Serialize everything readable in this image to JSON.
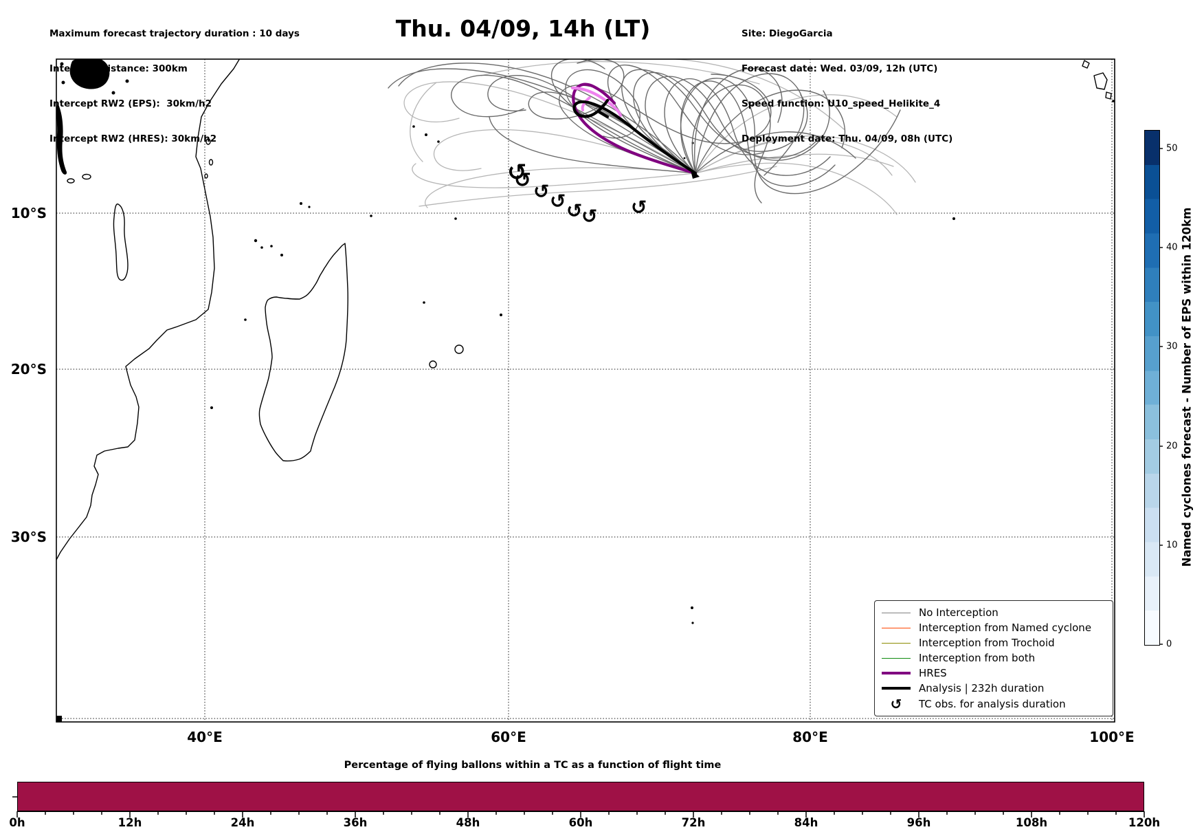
{
  "figure": {
    "title": "Thu. 04/09, 14h (LT)"
  },
  "info_left": {
    "lines": [
      "Maximum forecast trajectory duration : 10 days",
      "Intercept distance: 300km",
      "Intercept RW2 (EPS):  30km/h2",
      "Intercept RW2 (HRES): 30km/h2"
    ]
  },
  "info_right": {
    "lines": [
      "Site: DiegoGarcia",
      "Forecast date: Wed. 03/09, 12h (UTC)",
      "Speed function: U10_speed_Helikite_4",
      "Deployment date: Thu. 04/09, 08h (UTC)"
    ]
  },
  "map": {
    "lon_labels": [
      "40°E",
      "60°E",
      "80°E",
      "100°E"
    ],
    "lat_labels": [
      "10°S",
      "20°S",
      "30°S"
    ],
    "tc_symbol": "↺"
  },
  "legend": {
    "items": [
      {
        "label": "No Interception",
        "color": "#808080",
        "style": "thin"
      },
      {
        "label": "Interception from Named cyclone",
        "color": "#ff4500",
        "style": "thin"
      },
      {
        "label": "Interception from Trochoid",
        "color": "#8b8b00",
        "style": "thin"
      },
      {
        "label": "Interception from both",
        "color": "#0e8a0e",
        "style": "thin"
      },
      {
        "label": "HRES",
        "color": "#800080",
        "style": "thick"
      },
      {
        "label": "Analysis | 232h duration",
        "color": "#000000",
        "style": "thick"
      },
      {
        "label": "TC obs. for analysis duration",
        "symbol": "↺",
        "color": "#000000",
        "style": "symbol"
      }
    ]
  },
  "colorbar": {
    "label": "Named cyclones forecast - Number of EPS within 120km",
    "ticks": [
      "0",
      "10",
      "20",
      "30",
      "40",
      "50"
    ],
    "colormap": "Blues",
    "range": [
      0,
      52
    ]
  },
  "bottom_chart": {
    "title": "Percentage of flying ballons within a TC as a function of flight time",
    "x_labels": [
      "0h",
      "12h",
      "24h",
      "36h",
      "48h",
      "60h",
      "72h",
      "84h",
      "96h",
      "108h",
      "120h"
    ],
    "bar_color": "#9f1146"
  },
  "chart_data": [
    {
      "type": "map-trajectory-ensemble",
      "title": "Thu. 04/09, 14h (LT)",
      "region": "South-West Indian Ocean (Africa / Madagascar to 100°E)",
      "x_axis": {
        "ticks": [
          "40°E",
          "60°E",
          "80°E",
          "100°E"
        ]
      },
      "y_axis": {
        "ticks": [
          "10°S",
          "20°S",
          "30°S"
        ]
      },
      "projection_extent": {
        "lon_e": [
          30.2,
          100.2
        ],
        "lat": [
          -41,
          0.5
        ]
      },
      "deployment_site": {
        "name": "DiegoGarcia",
        "lon_e": 72.5,
        "lat": -7.3
      },
      "ensemble": {
        "description": "~50 EPS balloon trajectory members fanning NW from Diego Garcia with cyclonic loops near 62-72E / 2-8S",
        "classes": [
          "No Interception",
          "Interception from Named cyclone",
          "Interception from Trochoid",
          "Interception from both"
        ],
        "visible_classes": [
          "No Interception"
        ]
      },
      "highlight_tracks": [
        "HRES",
        "Analysis | 232h duration"
      ],
      "tc_observations": {
        "symbol": "↺",
        "count": 7,
        "approx_lon_e": [
          60.5,
          61.1,
          62.3,
          63.4,
          64.5,
          65.5,
          68.7
        ],
        "approx_lat": [
          -7.2,
          -7.8,
          -8.5,
          -9.1,
          -9.8,
          -10.1,
          -9.5
        ]
      },
      "colorbar": {
        "label": "Named cyclones forecast - Number of EPS within 120km",
        "min": 0,
        "max": 52,
        "ticks": [
          0,
          10,
          20,
          30,
          40,
          50
        ],
        "colormap": "Blues"
      },
      "grid": "dotted graticule every 20° lon / 10° lat"
    },
    {
      "type": "bar",
      "title": "Percentage of flying ballons within a TC as a function of flight time",
      "x_range_hours": [
        0,
        120
      ],
      "x_tick_step_hours": 12,
      "x_minor_tick_hours": 3,
      "categories": [
        "0h",
        "12h",
        "24h",
        "36h",
        "48h",
        "60h",
        "72h",
        "84h",
        "96h",
        "108h",
        "120h"
      ],
      "values": "single flat filled bar spanning 0h-120h at constant full height (appears 100%)",
      "constant_value_percent": 100,
      "bar_color": "#9f1146",
      "y_axis": "no visible tick labels (one unlabeled tick at mid height)"
    }
  ]
}
